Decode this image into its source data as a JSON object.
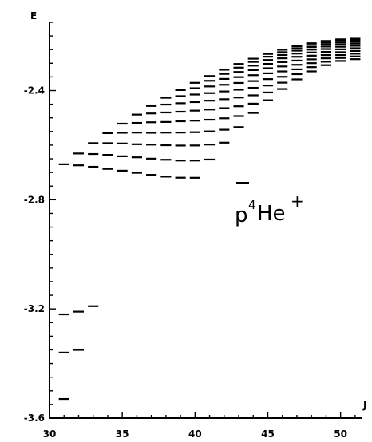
{
  "chart_data": {
    "type": "scatter",
    "marker": "horizontal-dash",
    "xlabel": "J",
    "ylabel": "E",
    "xlim": [
      30,
      51.5
    ],
    "ylim": [
      -3.6,
      -2.15
    ],
    "x_ticks": [
      30,
      35,
      40,
      45,
      50
    ],
    "x_tick_labels": [
      "30",
      "35",
      "40",
      "45",
      "50"
    ],
    "y_ticks": [
      -2.4,
      -2.8,
      -3.2,
      -3.6
    ],
    "y_tick_labels": [
      "-2.4",
      "-2.8",
      "-3.2",
      "-3.6"
    ],
    "grid": false,
    "annotation": {
      "base": "p",
      "overbar": true,
      "isotope": "4",
      "element": "He",
      "charge": "+"
    },
    "series": [
      {
        "v": 0,
        "J_start": 31,
        "J_end": 51,
        "E_start": -2.67,
        "E_end": -2.21
      },
      {
        "v": 1,
        "J_start": 31,
        "J_end": 51,
        "E_start": -2.717,
        "E_end": -2.215
      },
      {
        "v": 2,
        "J_start": 31,
        "J_end": 51,
        "E_start": -2.772,
        "E_end": -2.221
      },
      {
        "v": 3,
        "J_start": 31,
        "J_end": 51,
        "E_start": -2.838,
        "E_end": -2.228
      },
      {
        "v": 4,
        "J_start": 31,
        "J_end": 51,
        "E_start": -2.912,
        "E_end": -2.236
      },
      {
        "v": 5,
        "J_start": 31,
        "J_end": 51,
        "E_start": -3.0,
        "E_end": -2.245
      },
      {
        "v": 6,
        "J_start": 31,
        "J_end": 51,
        "E_start": -3.102,
        "E_end": -2.255
      },
      {
        "v": 7,
        "J_start": 31,
        "J_end": 51,
        "E_start": -3.222,
        "E_end": -2.265
      },
      {
        "v": 8,
        "J_start": 31,
        "J_end": 51,
        "E_start": -3.361,
        "E_end": -2.275
      },
      {
        "v": 9,
        "J_start": 31,
        "J_end": 51,
        "E_start": -3.522,
        "E_end": -2.285
      }
    ],
    "series_visible_start_J": [
      31,
      32,
      33,
      34,
      35,
      36,
      37,
      38,
      39,
      40,
      41,
      42,
      43
    ]
  }
}
